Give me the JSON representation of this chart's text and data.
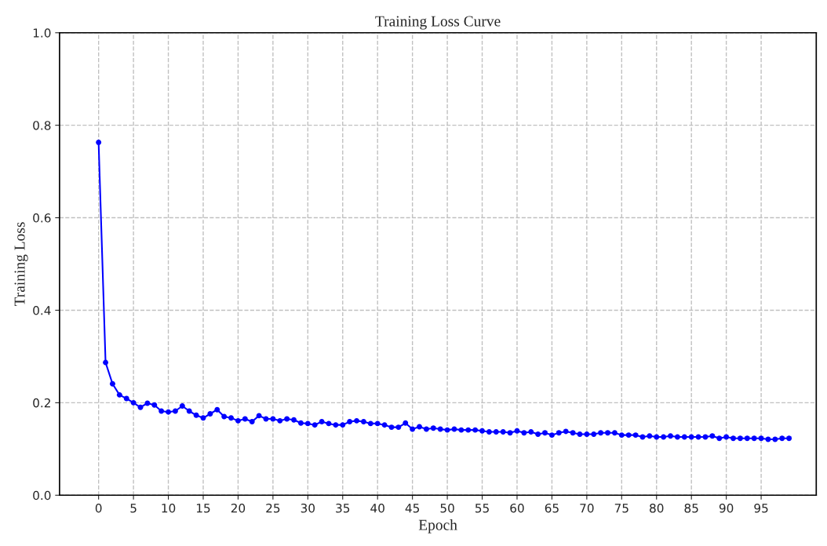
{
  "chart_data": {
    "type": "line",
    "title": "Training Loss Curve",
    "xlabel": "Epoch",
    "ylabel": "Training Loss",
    "x": [
      0,
      1,
      2,
      3,
      4,
      5,
      6,
      7,
      8,
      9,
      10,
      11,
      12,
      13,
      14,
      15,
      16,
      17,
      18,
      19,
      20,
      21,
      22,
      23,
      24,
      25,
      26,
      27,
      28,
      29,
      30,
      31,
      32,
      33,
      34,
      35,
      36,
      37,
      38,
      39,
      40,
      41,
      42,
      43,
      44,
      45,
      46,
      47,
      48,
      49,
      50,
      51,
      52,
      53,
      54,
      55,
      56,
      57,
      58,
      59,
      60,
      61,
      62,
      63,
      64,
      65,
      66,
      67,
      68,
      69,
      70,
      71,
      72,
      73,
      74,
      75,
      76,
      77,
      78,
      79,
      80,
      81,
      82,
      83,
      84,
      85,
      86,
      87,
      88,
      89,
      90,
      91,
      92,
      93,
      94,
      95,
      96,
      97,
      98,
      99
    ],
    "series": [
      {
        "color": "#0000ff",
        "values": [
          0.763,
          0.287,
          0.241,
          0.217,
          0.209,
          0.2,
          0.19,
          0.199,
          0.195,
          0.182,
          0.18,
          0.182,
          0.193,
          0.182,
          0.173,
          0.167,
          0.176,
          0.185,
          0.17,
          0.167,
          0.161,
          0.165,
          0.159,
          0.172,
          0.165,
          0.165,
          0.161,
          0.165,
          0.163,
          0.156,
          0.155,
          0.152,
          0.159,
          0.155,
          0.152,
          0.152,
          0.159,
          0.161,
          0.159,
          0.155,
          0.155,
          0.152,
          0.147,
          0.147,
          0.156,
          0.143,
          0.148,
          0.143,
          0.145,
          0.143,
          0.141,
          0.143,
          0.141,
          0.141,
          0.141,
          0.139,
          0.137,
          0.137,
          0.137,
          0.135,
          0.139,
          0.135,
          0.137,
          0.132,
          0.135,
          0.13,
          0.135,
          0.138,
          0.135,
          0.132,
          0.132,
          0.132,
          0.135,
          0.135,
          0.135,
          0.13,
          0.13,
          0.13,
          0.126,
          0.128,
          0.126,
          0.126,
          0.128,
          0.126,
          0.126,
          0.126,
          0.126,
          0.126,
          0.128,
          0.123,
          0.126,
          0.123,
          0.123,
          0.123,
          0.123,
          0.123,
          0.121,
          0.121,
          0.123,
          0.123
        ]
      }
    ],
    "xlim": [
      -5.6,
      102.9
    ],
    "ylim": [
      0,
      1
    ],
    "xticks": [
      0,
      5,
      10,
      15,
      20,
      25,
      30,
      35,
      40,
      45,
      50,
      55,
      60,
      65,
      70,
      75,
      80,
      85,
      90,
      95
    ],
    "yticks": [
      {
        "value": 0,
        "label": "0.0"
      },
      {
        "value": 0.2,
        "label": "0.2"
      },
      {
        "value": 0.4,
        "label": "0.4"
      },
      {
        "value": 0.6,
        "label": "0.6"
      },
      {
        "value": 0.8,
        "label": "0.8"
      },
      {
        "value": 1,
        "label": "1.0"
      }
    ],
    "grid": true,
    "marker": "circle",
    "line_style": "solid"
  }
}
